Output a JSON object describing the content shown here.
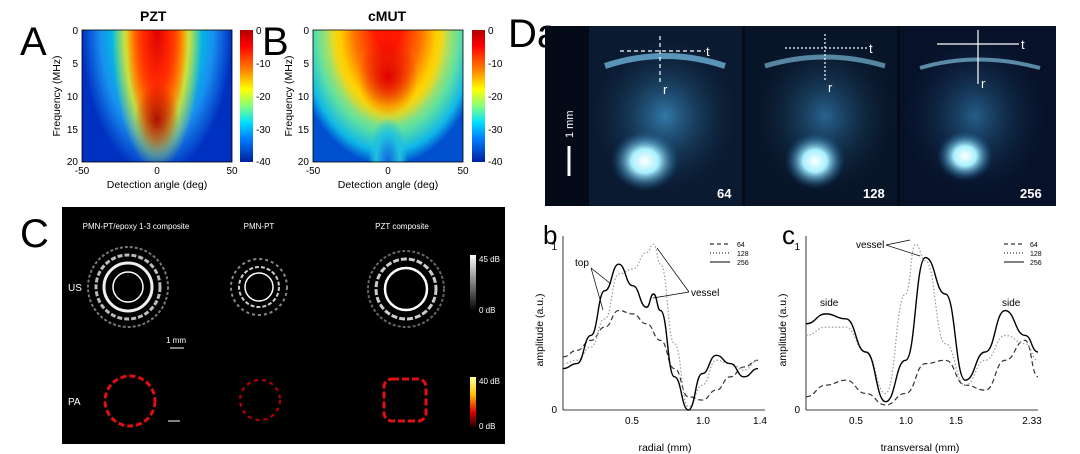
{
  "panels": {
    "A": {
      "letter": "A",
      "title": "PZT"
    },
    "B": {
      "letter": "B",
      "title": "cMUT"
    },
    "C": {
      "letter": "C"
    },
    "D": {
      "letter": "Da"
    }
  },
  "heatmap_axes": {
    "ylabel": "Frequency (MHz)",
    "xlabel": "Detection angle (deg)",
    "xticks": [
      "-50",
      "0",
      "50"
    ],
    "yticks": [
      "0",
      "5",
      "10",
      "15",
      "20"
    ],
    "colorbar_ticks": [
      "0",
      "-10",
      "-20",
      "-30",
      "-40"
    ]
  },
  "panel_C": {
    "columns": [
      "PMN-PT/epoxy 1-3 composite",
      "PMN-PT",
      "PZT composite"
    ],
    "rows": [
      "US",
      "PA"
    ],
    "scale_bar": "1 mm",
    "us_colorbar": [
      "45 dB",
      "0 dB"
    ],
    "pa_colorbar": [
      "40 dB",
      "0 dB"
    ]
  },
  "panel_Da": {
    "scale_bar": "1 mm",
    "image_labels": [
      "64",
      "128",
      "256"
    ],
    "axis_t": "t",
    "axis_r": "r"
  },
  "panel_b": {
    "letter": "b",
    "ylabel": "amplitude (a.u.)",
    "xlabel": "radial (mm)",
    "yticks": [
      "0",
      "1"
    ],
    "xticks": [
      "0.5",
      "1.0",
      "1.4"
    ],
    "annotations": [
      "top",
      "vessel"
    ],
    "legend": [
      "64",
      "128",
      "256"
    ]
  },
  "panel_c": {
    "letter": "c",
    "ylabel": "amplitude (a.u.)",
    "xlabel": "transversal (mm)",
    "yticks": [
      "0",
      "1"
    ],
    "xticks": [
      "0.5",
      "1.0",
      "1.5",
      "2.33"
    ],
    "annotations": [
      "vessel",
      "side",
      "side"
    ],
    "legend": [
      "64",
      "128",
      "256"
    ]
  },
  "chart_data": [
    {
      "type": "line",
      "panel": "b",
      "xlabel": "radial (mm)",
      "ylabel": "amplitude (a.u.)",
      "xlim": [
        0,
        1.45
      ],
      "ylim": [
        0,
        1.05
      ],
      "series": [
        {
          "name": "64",
          "style": "dashed",
          "x": [
            0,
            0.1,
            0.2,
            0.3,
            0.4,
            0.5,
            0.6,
            0.7,
            0.8,
            0.9,
            1.0,
            1.1,
            1.2,
            1.3,
            1.4
          ],
          "y": [
            0.32,
            0.36,
            0.42,
            0.5,
            0.6,
            0.58,
            0.52,
            0.42,
            0.25,
            0.08,
            0.06,
            0.12,
            0.2,
            0.26,
            0.3
          ]
        },
        {
          "name": "128",
          "style": "dotted",
          "x": [
            0,
            0.1,
            0.2,
            0.3,
            0.4,
            0.5,
            0.6,
            0.65,
            0.7,
            0.8,
            0.9,
            1.0,
            1.1,
            1.2,
            1.3,
            1.4
          ],
          "y": [
            0.28,
            0.3,
            0.38,
            0.55,
            0.82,
            0.85,
            0.95,
            1.0,
            0.88,
            0.4,
            0.02,
            0.15,
            0.3,
            0.28,
            0.24,
            0.3
          ]
        },
        {
          "name": "256",
          "style": "solid",
          "x": [
            0,
            0.1,
            0.2,
            0.3,
            0.4,
            0.5,
            0.6,
            0.65,
            0.7,
            0.8,
            0.9,
            1.0,
            1.1,
            1.2,
            1.3,
            1.4
          ],
          "y": [
            0.25,
            0.28,
            0.45,
            0.72,
            0.88,
            0.75,
            0.62,
            0.7,
            0.6,
            0.2,
            0.0,
            0.22,
            0.33,
            0.28,
            0.2,
            0.25
          ]
        }
      ]
    },
    {
      "type": "line",
      "panel": "c",
      "xlabel": "transversal (mm)",
      "ylabel": "amplitude (a.u.)",
      "xlim": [
        0,
        2.33
      ],
      "ylim": [
        0,
        1.05
      ],
      "series": [
        {
          "name": "64",
          "style": "dashed",
          "x": [
            0,
            0.2,
            0.4,
            0.6,
            0.8,
            1.0,
            1.2,
            1.4,
            1.6,
            1.8,
            2.0,
            2.2,
            2.33
          ],
          "y": [
            0.08,
            0.15,
            0.18,
            0.1,
            0.03,
            0.1,
            0.28,
            0.3,
            0.15,
            0.12,
            0.3,
            0.42,
            0.2
          ]
        },
        {
          "name": "128",
          "style": "dotted",
          "x": [
            0,
            0.2,
            0.4,
            0.6,
            0.8,
            1.0,
            1.1,
            1.2,
            1.4,
            1.6,
            1.8,
            2.0,
            2.2,
            2.33
          ],
          "y": [
            0.45,
            0.5,
            0.5,
            0.35,
            0.1,
            0.7,
            1.0,
            0.9,
            0.4,
            0.15,
            0.3,
            0.45,
            0.4,
            0.3
          ]
        },
        {
          "name": "256",
          "style": "solid",
          "x": [
            0,
            0.2,
            0.4,
            0.6,
            0.8,
            1.0,
            1.2,
            1.4,
            1.6,
            1.8,
            2.0,
            2.2,
            2.33
          ],
          "y": [
            0.52,
            0.58,
            0.55,
            0.35,
            0.05,
            0.3,
            0.92,
            0.7,
            0.18,
            0.35,
            0.6,
            0.45,
            0.35
          ]
        }
      ]
    }
  ]
}
